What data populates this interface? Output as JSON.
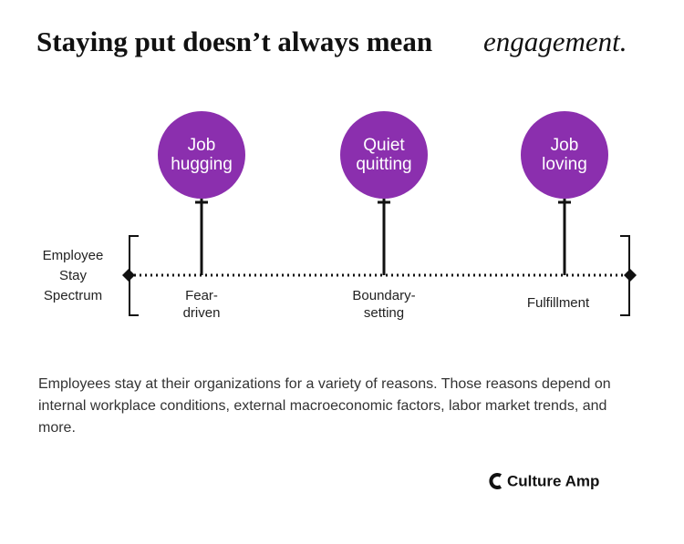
{
  "header": {
    "title": "Staying put doesn’t always mean",
    "title_accent": "engagement."
  },
  "spectrum": {
    "label": [
      "Employee",
      "Stay",
      "Spectrum"
    ],
    "nodes": [
      {
        "label": [
          "Job",
          "hugging"
        ],
        "caption": [
          "Fear-",
          "driven"
        ]
      },
      {
        "label": [
          "Quiet",
          "quitting"
        ],
        "caption": [
          "Boundary-",
          "setting"
        ]
      },
      {
        "label": [
          "Job",
          "loving"
        ],
        "caption": [
          "Fulfillment"
        ]
      }
    ]
  },
  "description": "Employees stay at their organizations for a variety of reasons. Those reasons depend on internal workplace conditions, external macroeconomic factors, labor market trends, and more.",
  "brand": "Culture Amp"
}
